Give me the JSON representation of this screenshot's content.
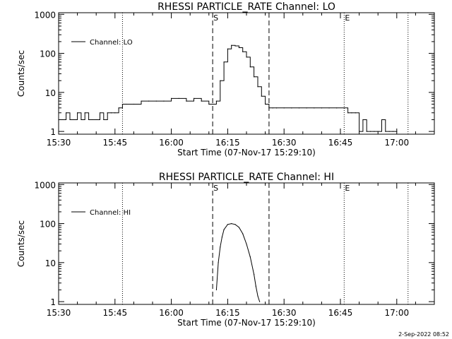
{
  "footer_date": "2-Sep-2022 08:52",
  "chart_data": [
    {
      "type": "line",
      "title": "RHESSI PARTICLE_RATE Channel: LO",
      "xlabel": "Start Time (07-Nov-17 15:29:10)",
      "ylabel": "Counts/sec",
      "yscale": "log",
      "ylim": [
        0.85,
        1100
      ],
      "xlim": [
        "15:30",
        "17:10"
      ],
      "x_ticks": [
        "15:30",
        "15:45",
        "16:00",
        "16:15",
        "16:30",
        "16:45",
        "17:00"
      ],
      "y_ticks": [
        "1",
        "10",
        "100",
        "1000"
      ],
      "legend": "Channel: LO",
      "legend_position": "top-left",
      "markers": [
        {
          "label": "S",
          "time": "16:11",
          "style": "dashed"
        },
        {
          "label": "",
          "time": "16:26",
          "style": "dashed"
        },
        {
          "label": "E",
          "time": "16:46",
          "style": "dotted"
        }
      ],
      "dotted_lines": [
        "15:47",
        "17:03"
      ],
      "series": [
        {
          "x": [
            "15:30",
            "15:31",
            "15:32",
            "15:33",
            "15:34",
            "15:35",
            "15:36",
            "15:37",
            "15:38",
            "15:39",
            "15:40",
            "15:41",
            "15:42",
            "15:43",
            "15:44",
            "15:45",
            "15:46",
            "15:47",
            "15:48",
            "15:50",
            "15:52",
            "15:54",
            "15:56",
            "15:58",
            "16:00",
            "16:02",
            "16:04",
            "16:06",
            "16:08",
            "16:10",
            "16:11",
            "16:12",
            "16:13",
            "16:14",
            "16:15",
            "16:16",
            "16:17",
            "16:18",
            "16:19",
            "16:20",
            "16:21",
            "16:22",
            "16:23",
            "16:24",
            "16:25",
            "16:26",
            "16:27",
            "16:28",
            "16:30",
            "16:32",
            "16:34",
            "16:36",
            "16:38",
            "16:40",
            "16:42",
            "16:44",
            "16:46",
            "16:47",
            "16:48",
            "16:49",
            "16:50",
            "16:51",
            "16:52",
            "16:53",
            "16:54",
            "16:55",
            "16:56",
            "16:57",
            "16:58",
            "16:59",
            "17:00"
          ],
          "y": [
            2,
            2,
            3,
            2,
            2,
            3,
            2,
            3,
            2,
            2,
            2,
            3,
            2,
            3,
            3,
            3,
            4,
            5,
            5,
            5,
            6,
            6,
            6,
            6,
            7,
            7,
            6,
            7,
            6,
            5,
            5,
            6,
            20,
            60,
            130,
            160,
            155,
            140,
            110,
            80,
            45,
            25,
            14,
            8,
            5,
            4,
            4,
            4,
            4,
            4,
            4,
            4,
            4,
            4,
            4,
            4,
            4,
            3,
            3,
            3,
            1,
            2,
            1,
            1,
            1,
            1,
            2,
            1,
            1,
            1,
            1
          ]
        }
      ]
    },
    {
      "type": "line",
      "title": "RHESSI PARTICLE_RATE Channel: HI",
      "xlabel": "Start Time (07-Nov-17 15:29:10)",
      "ylabel": "Counts/sec",
      "yscale": "log",
      "ylim": [
        0.85,
        1100
      ],
      "xlim": [
        "15:30",
        "17:10"
      ],
      "x_ticks": [
        "15:30",
        "15:45",
        "16:00",
        "16:15",
        "16:30",
        "16:45",
        "17:00"
      ],
      "y_ticks": [
        "1",
        "10",
        "100",
        "1000"
      ],
      "legend": "Channel: HI",
      "legend_position": "top-left",
      "markers": [
        {
          "label": "S",
          "time": "16:11",
          "style": "dashed"
        },
        {
          "label": "",
          "time": "16:26",
          "style": "dashed"
        },
        {
          "label": "E",
          "time": "16:46",
          "style": "dotted"
        }
      ],
      "dotted_lines": [
        "15:47",
        "17:03"
      ],
      "series": [
        {
          "x": [
            "16:12",
            "16:12:30",
            "16:13",
            "16:13:30",
            "16:14",
            "16:15",
            "16:16",
            "16:17",
            "16:18",
            "16:19",
            "16:20",
            "16:21",
            "16:22",
            "16:22:30",
            "16:23",
            "16:23:30"
          ],
          "y": [
            2,
            10,
            25,
            45,
            70,
            95,
            100,
            95,
            80,
            55,
            30,
            14,
            5,
            2.5,
            1.4,
            1
          ]
        }
      ]
    }
  ]
}
